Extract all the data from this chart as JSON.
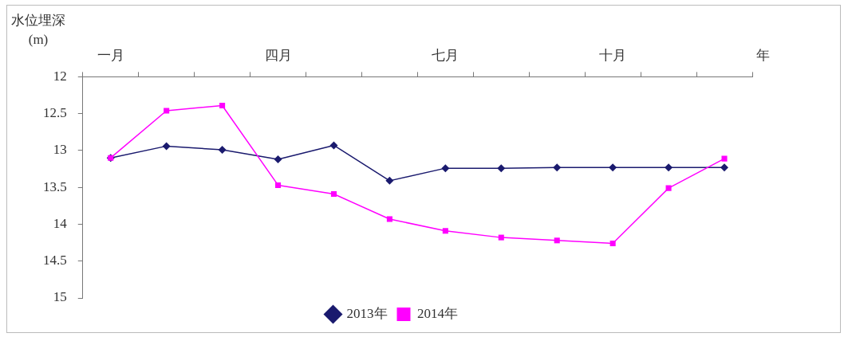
{
  "chart_data": {
    "type": "line",
    "ylabel": "水位埋深\n(m)",
    "xlabel": "年",
    "categories": [
      "一月",
      null,
      null,
      "四月",
      null,
      null,
      "七月",
      null,
      null,
      "十月",
      null,
      null
    ],
    "series": [
      {
        "name": "2013年",
        "color": "#1a1a6e",
        "marker": "diamond",
        "values": [
          13.1,
          12.94,
          12.99,
          13.12,
          12.93,
          13.41,
          13.24,
          13.24,
          13.23,
          13.23,
          13.23,
          13.23
        ]
      },
      {
        "name": "2014年",
        "color": "#ff00ff",
        "marker": "square",
        "values": [
          13.1,
          12.46,
          12.39,
          13.47,
          13.59,
          13.93,
          14.09,
          14.18,
          14.22,
          14.26,
          13.51,
          13.11
        ]
      }
    ],
    "ylim": [
      15,
      12
    ],
    "yticks": [
      12,
      12.5,
      13,
      13.5,
      14,
      14.5,
      15
    ],
    "grid": false,
    "legend": "bottom",
    "line_style": "solid"
  }
}
